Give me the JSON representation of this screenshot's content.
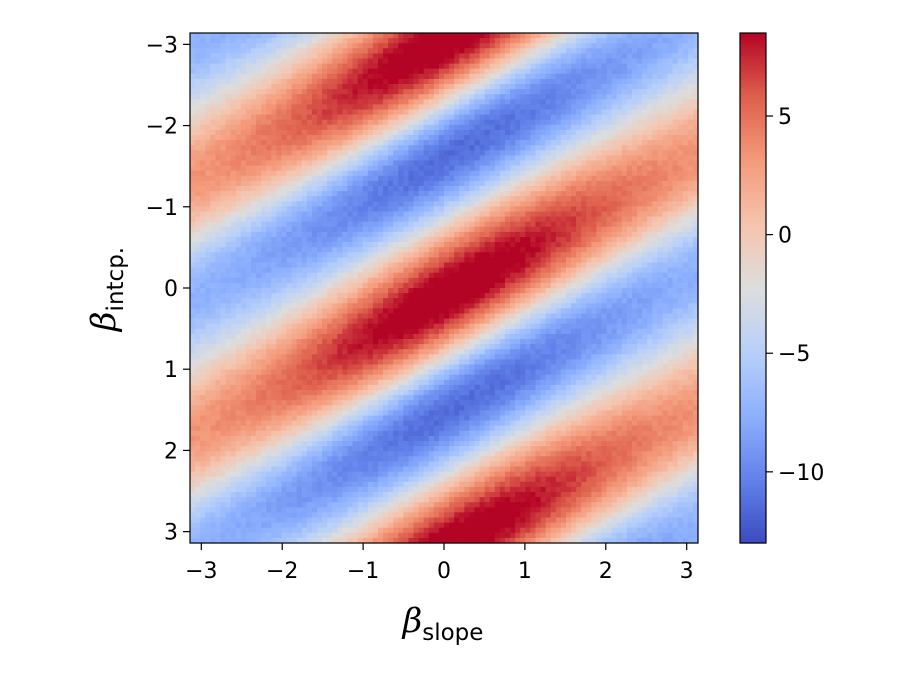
{
  "chart_data": {
    "type": "heatmap",
    "title": "",
    "x_axis": {
      "symbol": "β",
      "subscript": "slope",
      "range": [
        -3.14,
        3.14
      ],
      "ticks": [
        -3,
        -2,
        -1,
        0,
        1,
        2,
        3
      ],
      "tick_labels": [
        "−3",
        "−2",
        "−1",
        "0",
        "1",
        "2",
        "3"
      ]
    },
    "y_axis": {
      "symbol": "β",
      "subscript": "intcp.",
      "range": [
        -3.14,
        3.14
      ],
      "inverted": true,
      "ticks": [
        -3,
        -2,
        -1,
        0,
        1,
        2,
        3
      ],
      "tick_labels": [
        "−3",
        "−2",
        "−1",
        "0",
        "1",
        "2",
        "3"
      ]
    },
    "colorbar": {
      "colormap": "coolwarm",
      "range": [
        -13,
        8.5
      ],
      "ticks": [
        5,
        0,
        -5,
        -10
      ],
      "tick_labels": [
        "5",
        "0",
        "−5",
        "−10"
      ]
    },
    "grid": false,
    "field": {
      "description_of_pattern": "periodic in intercept with period pi; diagonal bands of positive and negative values",
      "resolution": [
        100,
        100
      ],
      "extrema": [
        {
          "slope": 0.5,
          "intercept": -0.8,
          "value": 8.5
        },
        {
          "slope": 0.5,
          "intercept": 2.3,
          "value": 8.5
        },
        {
          "slope": -1.0,
          "intercept": -2.0,
          "value": -13
        },
        {
          "slope": -1.0,
          "intercept": 1.1,
          "value": -13
        }
      ]
    }
  }
}
